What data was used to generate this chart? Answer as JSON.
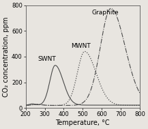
{
  "title": "",
  "xlabel": "Temperature, °C",
  "ylabel": "CO₂ concentration, ppm",
  "xlim": [
    200,
    800
  ],
  "ylim": [
    0,
    800
  ],
  "xticks": [
    200,
    300,
    400,
    500,
    600,
    700,
    800
  ],
  "yticks": [
    0,
    200,
    400,
    600,
    800
  ],
  "labels": {
    "SWNT": [
      310,
      355
    ],
    "MWNT": [
      490,
      460
    ],
    "Graphite": [
      620,
      720
    ]
  },
  "background_color": "#e8e5e0",
  "plot_bg_color": "#e8e5e0",
  "line_color": "#4a4a4a",
  "fontsize": 7,
  "label_fontsize": 6.5,
  "tick_fontsize": 6
}
